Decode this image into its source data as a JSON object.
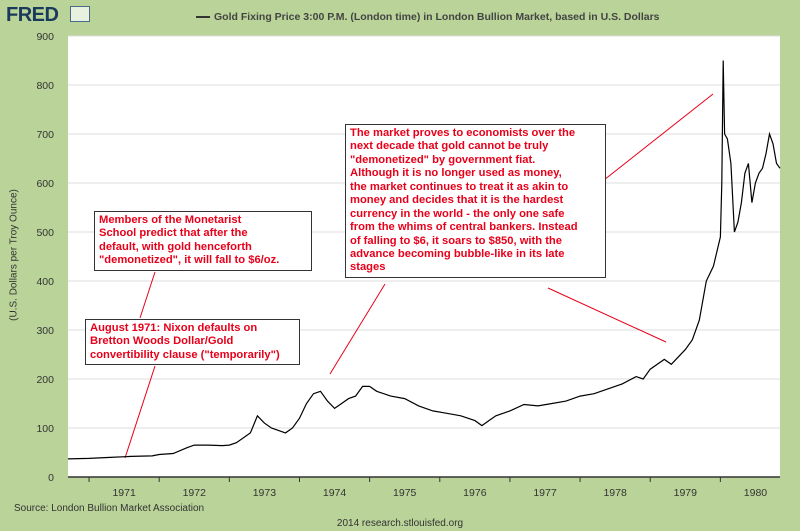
{
  "header": {
    "logo": "FRED",
    "title": "Gold Fixing Price 3:00 P.M. (London time) in London Bullion Market, based in U.S. Dollars"
  },
  "footer": {
    "source": "Source: London Bullion Market Association",
    "credit": "2014 research.stlouisfed.org"
  },
  "annotations": {
    "nixon": "August 1971: Nixon defaults on\nBretton Woods Dollar/Gold\nconvertibility clause (\"temporarily\")",
    "monetarist": "Members of the Monetarist\nSchool predict that after the\ndefault, with gold henceforth\n\"demonetized\", it will fall to $6/oz.",
    "market": "The market proves to economists over the\nnext decade that gold cannot be truly\n\"demonetized\" by government fiat.\nAlthough it is no longer used as money,\nthe market continues to treat it as akin to\nmoney and decides that it is the hardest\ncurrency in the world - the only one safe\nfrom the  whims of central bankers. Instead\nof falling to $6, it soars to $850, with the\nadvance becoming bubble-like in its late\nstages"
  },
  "colors": {
    "line": "#000000",
    "annotation_text": "#e8001a",
    "background": "#b9d398",
    "plot_bg": "#ffffff",
    "grid": "#dddddd"
  },
  "chart_data": {
    "type": "line",
    "title": "Gold Fixing Price 3:00 P.M. (London time) in London Bullion Market, based in U.S. Dollars",
    "xlabel": "",
    "ylabel": "(U.S. Dollars per Troy Ounce)",
    "xlim": [
      1970.7,
      1980.85
    ],
    "ylim": [
      0,
      900
    ],
    "y_ticks": [
      0,
      100,
      200,
      300,
      400,
      500,
      600,
      700,
      800,
      900
    ],
    "x_ticks": [
      "1971",
      "1972",
      "1973",
      "1974",
      "1975",
      "1976",
      "1977",
      "1978",
      "1979",
      "1980"
    ],
    "grid": true,
    "series": [
      {
        "x": [
          1970.7,
          1971.0,
          1971.3,
          1971.6,
          1971.9,
          1972.0,
          1972.2,
          1972.4,
          1972.5,
          1972.7,
          1972.9,
          1973.0,
          1973.1,
          1973.3,
          1973.4,
          1973.5,
          1973.6,
          1973.7,
          1973.8,
          1973.9,
          1974.0,
          1974.1,
          1974.2,
          1974.3,
          1974.4,
          1974.5,
          1974.6,
          1974.7,
          1974.8,
          1974.9,
          1975.0,
          1975.1,
          1975.3,
          1975.5,
          1975.7,
          1975.9,
          1976.1,
          1976.3,
          1976.5,
          1976.6,
          1976.7,
          1976.8,
          1977.0,
          1977.2,
          1977.4,
          1977.6,
          1977.8,
          1978.0,
          1978.2,
          1978.4,
          1978.6,
          1978.8,
          1978.9,
          1979.0,
          1979.2,
          1979.3,
          1979.5,
          1979.6,
          1979.7,
          1979.8,
          1979.9,
          1980.0,
          1980.02,
          1980.04,
          1980.06,
          1980.1,
          1980.15,
          1980.2,
          1980.25,
          1980.3,
          1980.35,
          1980.4,
          1980.45,
          1980.5,
          1980.55,
          1980.6,
          1980.65,
          1980.7,
          1980.75,
          1980.8,
          1980.85
        ],
        "y": [
          37,
          38,
          40,
          42,
          43,
          46,
          48,
          60,
          65,
          65,
          64,
          65,
          70,
          90,
          125,
          110,
          100,
          95,
          90,
          100,
          120,
          150,
          170,
          175,
          155,
          140,
          150,
          160,
          165,
          185,
          185,
          175,
          165,
          160,
          145,
          135,
          130,
          125,
          115,
          105,
          115,
          125,
          135,
          148,
          145,
          150,
          155,
          165,
          170,
          180,
          190,
          205,
          200,
          220,
          240,
          230,
          260,
          280,
          320,
          400,
          430,
          490,
          600,
          850,
          700,
          690,
          640,
          500,
          520,
          560,
          620,
          640,
          560,
          600,
          620,
          630,
          660,
          700,
          680,
          640,
          630
        ]
      }
    ]
  }
}
